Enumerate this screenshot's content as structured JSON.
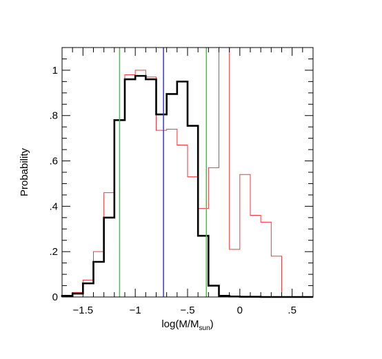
{
  "chart_data": {
    "type": "histogram",
    "title": "",
    "xlabel": "log(M/M",
    "xlabel_subscript": "sun",
    "xlabel_close": ")",
    "ylabel": "Probability",
    "xlim": [
      -1.7,
      0.7
    ],
    "ylim": [
      0,
      1.1
    ],
    "x_ticks": [
      -1.5,
      -1,
      -0.5,
      0,
      0.5
    ],
    "x_tick_labels": [
      "−1.5",
      "−1",
      "−.5",
      "0",
      ".5"
    ],
    "y_ticks": [
      0,
      0.2,
      0.4,
      0.6,
      0.8,
      1.0
    ],
    "y_tick_labels": [
      "0",
      ".2",
      ".4",
      ".6",
      ".8",
      "1"
    ],
    "bin_edges": [
      -1.7,
      -1.6,
      -1.5,
      -1.4,
      -1.3,
      -1.2,
      -1.1,
      -1.0,
      -0.9,
      -0.8,
      -0.7,
      -0.6,
      -0.5,
      -0.4,
      -0.3,
      -0.2,
      -0.1,
      0.0,
      0.1,
      0.2,
      0.3,
      0.4,
      0.5,
      0.6,
      0.7
    ],
    "series": [
      {
        "color": "#ff3333",
        "style": "thin",
        "values": [
          0.005,
          0.02,
          0.075,
          0.2,
          0.46,
          0.78,
          0.98,
          1.0,
          0.97,
          0.735,
          0.74,
          0.67,
          0.53,
          0.39,
          0.57,
          1.1,
          0.21,
          0.54,
          0.36,
          0.33,
          0.18,
          0.0,
          0.0,
          0.0
        ]
      },
      {
        "color": "#000000",
        "style": "thick",
        "values": [
          0.005,
          0.015,
          0.06,
          0.155,
          0.35,
          0.78,
          0.96,
          0.975,
          0.96,
          0.805,
          0.895,
          0.95,
          0.755,
          0.27,
          0.05,
          0.005,
          0.002,
          0.001,
          0.001,
          0.0,
          0.0,
          0.0,
          0.0,
          0.0
        ]
      }
    ],
    "vertical_lines": [
      {
        "x": -1.15,
        "color": "#33cc33"
      },
      {
        "x": -0.73,
        "color": "#3333ee"
      },
      {
        "x": -0.32,
        "color": "#33cc33"
      }
    ]
  }
}
